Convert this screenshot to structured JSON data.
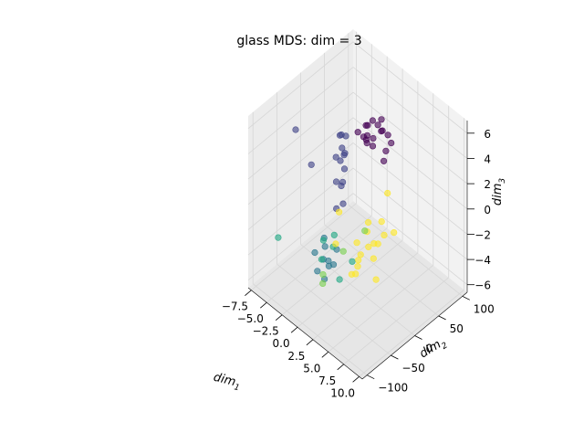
{
  "chart_data": {
    "type": "scatter",
    "projection": "3d",
    "title": "glass MDS: dim = 3",
    "xlabel_base": "dim",
    "xlabel_sub": "1",
    "ylabel_base": "dim",
    "ylabel_sub": "2",
    "zlabel_base": "dim",
    "zlabel_sub": "3",
    "x_ticks": [
      "−7.5",
      "−5.0",
      "−2.5",
      "0.0",
      "2.5",
      "5.0",
      "7.5",
      "10.0"
    ],
    "y_ticks": [
      "−100",
      "−50",
      "0",
      "50",
      "100"
    ],
    "z_ticks": [
      "−6",
      "−4",
      "−2",
      "0",
      "2",
      "4",
      "6"
    ],
    "grid": true,
    "colormap": "viridis",
    "classes": [
      {
        "id": 1,
        "color": "#440154",
        "points": [
          [
            -0.5,
            40,
            4.5
          ],
          [
            0.2,
            45,
            5
          ],
          [
            -1,
            50,
            4
          ],
          [
            0.5,
            42,
            3.8
          ],
          [
            1,
            55,
            4.2
          ],
          [
            -0.3,
            38,
            3.5
          ],
          [
            0.8,
            48,
            4.8
          ],
          [
            1.5,
            60,
            3.9
          ],
          [
            -1.2,
            44,
            3.2
          ],
          [
            0.1,
            35,
            4.1
          ],
          [
            1.8,
            52,
            3
          ],
          [
            2.2,
            58,
            3.6
          ],
          [
            -0.8,
            46,
            2.8
          ],
          [
            0.6,
            40,
            3.3
          ],
          [
            1.2,
            50,
            4.4
          ],
          [
            0.3,
            62,
            4.6
          ],
          [
            -1.5,
            36,
            3.7
          ],
          [
            2,
            45,
            2.5
          ]
        ]
      },
      {
        "id": 2,
        "color": "#414487",
        "points": [
          [
            -3,
            30,
            3
          ],
          [
            -2.5,
            20,
            2
          ],
          [
            -3.5,
            25,
            1
          ],
          [
            -2,
            15,
            2.5
          ],
          [
            -4,
            35,
            1.5
          ],
          [
            -3,
            10,
            0
          ],
          [
            -2.8,
            18,
            -0.5
          ],
          [
            -1.5,
            5,
            -1
          ],
          [
            -2.2,
            0,
            -1.5
          ],
          [
            -4.5,
            40,
            2.2
          ],
          [
            -5.5,
            -10,
            1
          ],
          [
            -6.5,
            -30,
            4
          ],
          [
            -2.6,
            22,
            0.8
          ],
          [
            -3.2,
            12,
            1.8
          ],
          [
            -1.8,
            8,
            0.5
          ],
          [
            -3.8,
            28,
            2.8
          ]
        ]
      },
      {
        "id": 3,
        "color": "#2a788e",
        "points": [
          [
            -2.5,
            -20,
            -4
          ],
          [
            -2,
            -30,
            -4.5
          ],
          [
            -1.5,
            -25,
            -5
          ],
          [
            -3,
            -35,
            -4.2
          ],
          [
            -1,
            -15,
            -3.8
          ],
          [
            -2.2,
            -40,
            -5.2
          ],
          [
            -1.8,
            -22,
            -4.8
          ],
          [
            -0.5,
            -28,
            -4.4
          ],
          [
            -2.8,
            -18,
            -3.5
          ],
          [
            -1.2,
            -38,
            -5.5
          ]
        ]
      },
      {
        "id": 5,
        "color": "#22a884",
        "points": [
          [
            -2,
            -30,
            -3
          ],
          [
            -1,
            -20,
            -2.5
          ],
          [
            -1.5,
            -40,
            -4
          ],
          [
            -7,
            -60,
            -3.8
          ],
          [
            4.5,
            -80,
            -2
          ],
          [
            5,
            -60,
            -1
          ],
          [
            -0.8,
            -25,
            -3.2
          ]
        ]
      },
      {
        "id": 6,
        "color": "#7ad151",
        "points": [
          [
            1,
            -70,
            -4
          ],
          [
            2,
            -40,
            -2
          ],
          [
            5.5,
            -40,
            1
          ],
          [
            -0.5,
            -50,
            -4.5
          ]
        ]
      },
      {
        "id": 7,
        "color": "#fde725",
        "points": [
          [
            2,
            10,
            -2
          ],
          [
            3,
            0,
            -2.5
          ],
          [
            4,
            20,
            -1.8
          ],
          [
            2.5,
            -10,
            -3
          ],
          [
            3.5,
            5,
            -2.2
          ],
          [
            1.8,
            15,
            -1.5
          ],
          [
            4.2,
            -5,
            -2.8
          ],
          [
            3.2,
            25,
            -1.2
          ],
          [
            2.8,
            -20,
            -3.5
          ],
          [
            5,
            -10,
            -4
          ],
          [
            4.8,
            30,
            -1.6
          ],
          [
            1.5,
            -5,
            -2.6
          ],
          [
            0,
            -30,
            -2.5
          ],
          [
            -1,
            -10,
            -1
          ],
          [
            3,
            40,
            0.5
          ],
          [
            4,
            -40,
            -3
          ],
          [
            6,
            -60,
            -0.5
          ],
          [
            2.2,
            -25,
            -4.2
          ],
          [
            3.6,
            12,
            -2.4
          ]
        ]
      }
    ]
  }
}
